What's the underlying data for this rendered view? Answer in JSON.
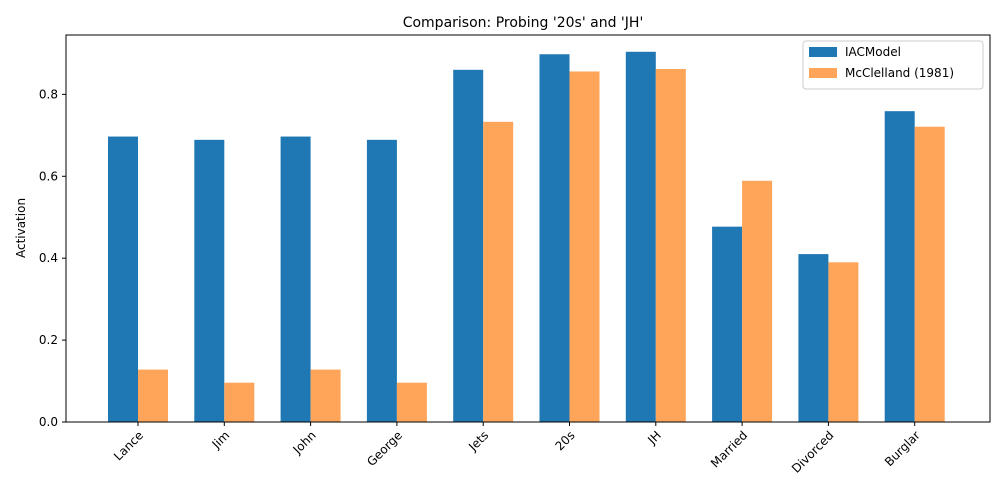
{
  "chart_data": {
    "type": "bar",
    "title": "Comparison: Probing '20s' and 'JH'",
    "xlabel": "",
    "ylabel": "Activation",
    "categories": [
      "Lance",
      "Jim",
      "John",
      "George",
      "Jets",
      "20s",
      "JH",
      "Married",
      "Divorced",
      "Burglar"
    ],
    "series": [
      {
        "name": "IACModel",
        "color": "#1f77b4",
        "values": [
          0.697,
          0.689,
          0.697,
          0.689,
          0.86,
          0.898,
          0.904,
          0.477,
          0.41,
          0.759
        ]
      },
      {
        "name": "McClelland (1981)",
        "color": "#ffa55a",
        "values": [
          0.128,
          0.096,
          0.128,
          0.096,
          0.733,
          0.856,
          0.862,
          0.589,
          0.39,
          0.721
        ]
      }
    ],
    "ylim": [
      0,
      0.945
    ],
    "yticks": [
      0.0,
      0.2,
      0.4,
      0.6,
      0.8
    ],
    "ytick_labels": [
      "0.0",
      "0.2",
      "0.4",
      "0.6",
      "0.8"
    ],
    "grid": false,
    "legend_position": "top-right"
  }
}
